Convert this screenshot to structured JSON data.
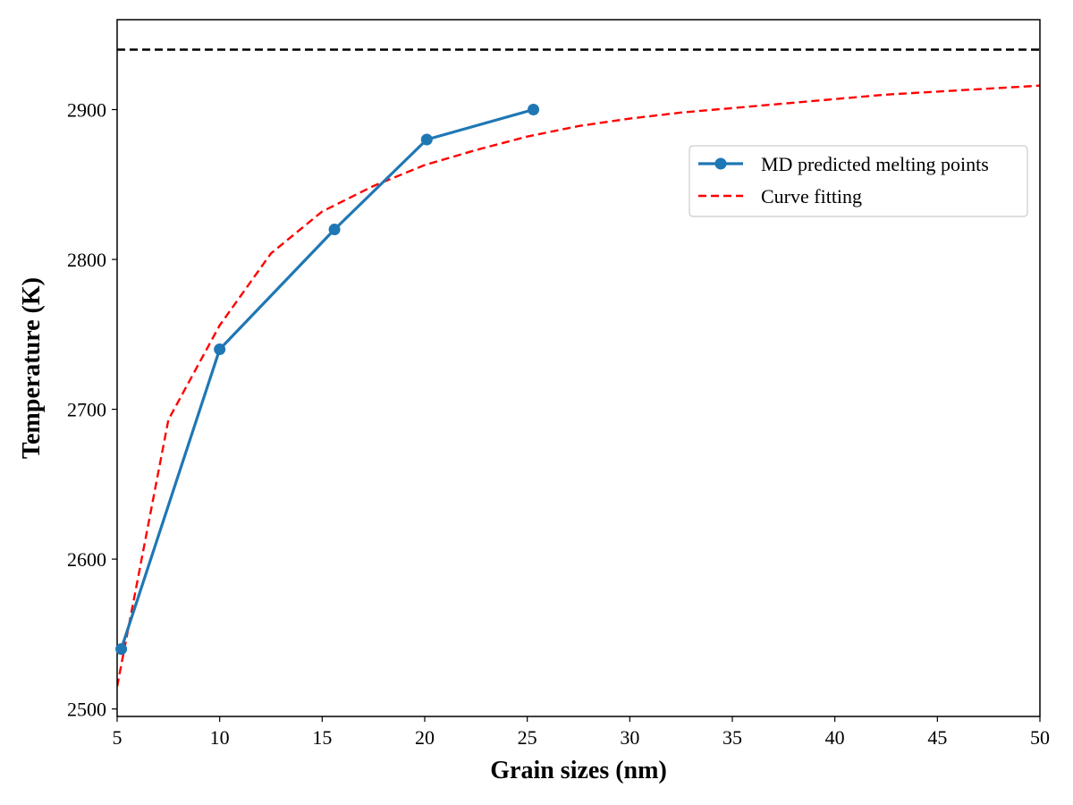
{
  "chart_data": {
    "type": "line",
    "xlabel": "Grain sizes (nm)",
    "ylabel": "Temperature (K)",
    "xlim": [
      5,
      50
    ],
    "ylim": [
      2495,
      2960
    ],
    "xticks": [
      5,
      10,
      15,
      20,
      25,
      30,
      35,
      40,
      45,
      50
    ],
    "yticks": [
      2500,
      2600,
      2700,
      2800,
      2900
    ],
    "grid": false,
    "legend_position": "upper-right",
    "series": [
      {
        "name": "MD predicted melting points",
        "style": "solid-with-circle-markers",
        "color": "#1f77b4",
        "x": [
          5.2,
          10.0,
          15.6,
          20.1,
          25.3
        ],
        "y": [
          2540,
          2740,
          2820,
          2880,
          2900
        ]
      },
      {
        "name": "Curve fitting",
        "style": "dashed",
        "color": "#ff0000",
        "x": [
          5,
          7.5,
          10,
          12.5,
          15,
          17.5,
          20,
          22.5,
          25,
          27.5,
          30,
          32.5,
          35,
          37.5,
          40,
          42.5,
          45,
          47.5,
          50
        ],
        "y": [
          2515,
          2693,
          2756,
          2804,
          2832,
          2849,
          2863,
          2873,
          2882,
          2889,
          2894,
          2898,
          2901,
          2904,
          2907,
          2910,
          2912,
          2914,
          2916
        ]
      }
    ],
    "reference_lines": [
      {
        "orientation": "horizontal",
        "y": 2940,
        "style": "dashed",
        "color": "#000000"
      }
    ]
  }
}
